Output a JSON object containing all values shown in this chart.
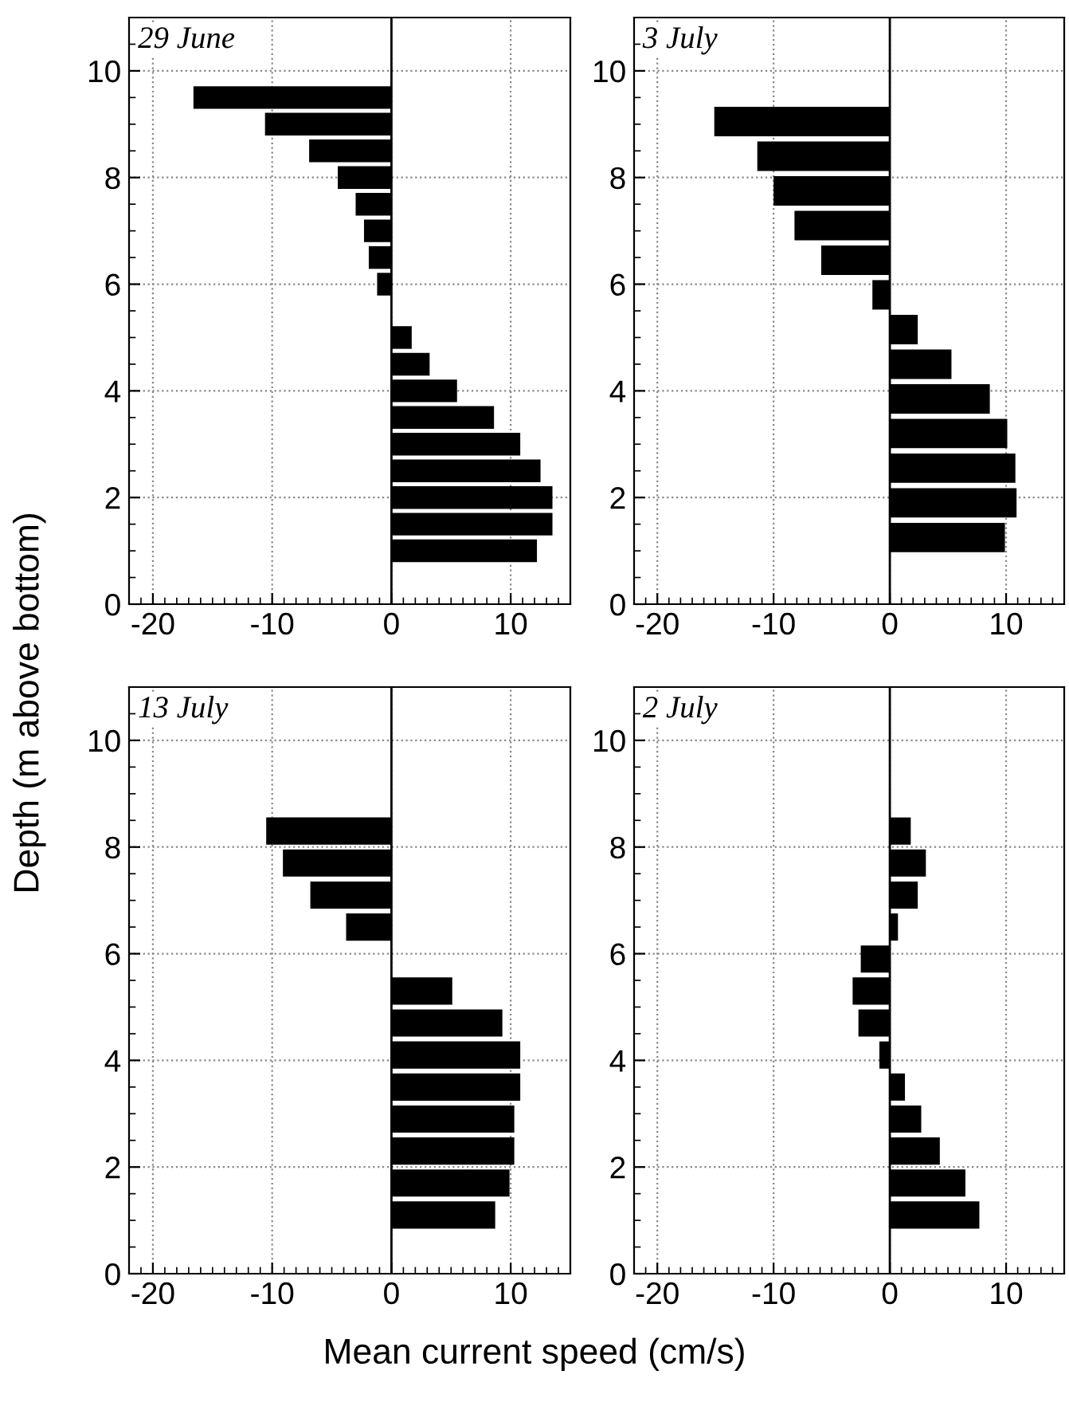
{
  "chart_data": [
    {
      "type": "bar",
      "orientation": "horizontal",
      "title": "29 June",
      "ylabel": "Depth (m above bottom)",
      "xlabel": "Mean current speed (cm/s)",
      "x": [
        9.5,
        9.0,
        8.5,
        8.0,
        7.5,
        7.0,
        6.5,
        6.0,
        5.0,
        4.5,
        4.0,
        3.5,
        3.0,
        2.5,
        2.0,
        1.5,
        1.0
      ],
      "values": [
        -16.6,
        -10.6,
        -6.9,
        -4.5,
        -3.0,
        -2.3,
        -1.9,
        -1.2,
        1.7,
        3.2,
        5.5,
        8.6,
        10.8,
        12.5,
        13.5,
        13.5,
        12.2
      ],
      "color": "#000000",
      "xlim": [
        -22,
        15
      ],
      "xticks": [
        -20,
        -10,
        0,
        10
      ],
      "ylim": [
        0,
        11
      ],
      "yticks": [
        0,
        2,
        4,
        6,
        8,
        10
      ],
      "grid": true,
      "ref_lines": [
        {
          "axis": "x",
          "value": 0
        }
      ]
    },
    {
      "type": "bar",
      "orientation": "horizontal",
      "title": "3 July",
      "x": [
        9.05,
        8.4,
        7.75,
        7.1,
        6.45,
        5.8,
        5.15,
        4.5,
        3.85,
        3.2,
        2.55,
        1.9,
        1.25
      ],
      "values": [
        -15.1,
        -11.4,
        -10.0,
        -8.2,
        -5.9,
        -1.5,
        2.4,
        5.3,
        8.6,
        10.1,
        10.8,
        10.9,
        9.9
      ],
      "color": "#000000",
      "xlim": [
        -22,
        15
      ],
      "xticks": [
        -20,
        -10,
        0,
        10
      ],
      "ylim": [
        0,
        11
      ],
      "yticks": [
        0,
        2,
        4,
        6,
        8,
        10
      ],
      "grid": true,
      "ref_lines": [
        {
          "axis": "x",
          "value": 0
        }
      ]
    },
    {
      "type": "bar",
      "orientation": "horizontal",
      "title": "13 July",
      "x": [
        8.3,
        7.7,
        7.1,
        6.5,
        5.3,
        4.7,
        4.1,
        3.5,
        2.9,
        2.3,
        1.7,
        1.1
      ],
      "values": [
        -10.5,
        -9.1,
        -6.8,
        -3.8,
        5.1,
        9.3,
        10.8,
        10.8,
        10.3,
        10.3,
        9.9,
        8.7
      ],
      "color": "#000000",
      "xlim": [
        -22,
        15
      ],
      "xticks": [
        -20,
        -10,
        0,
        10
      ],
      "ylim": [
        0,
        11
      ],
      "yticks": [
        0,
        2,
        4,
        6,
        8,
        10
      ],
      "grid": true,
      "ref_lines": [
        {
          "axis": "x",
          "value": 0
        }
      ]
    },
    {
      "type": "bar",
      "orientation": "horizontal",
      "title": "2 July",
      "x": [
        8.3,
        7.7,
        7.1,
        6.5,
        5.9,
        5.3,
        4.7,
        4.1,
        3.5,
        2.9,
        2.3,
        1.7,
        1.1
      ],
      "values": [
        1.8,
        3.1,
        2.4,
        0.7,
        -2.5,
        -3.2,
        -2.7,
        -0.9,
        1.3,
        2.7,
        4.3,
        6.5,
        7.7
      ],
      "color": "#000000",
      "xlim": [
        -22,
        15
      ],
      "xticks": [
        -20,
        -10,
        0,
        10
      ],
      "ylim": [
        0,
        11
      ],
      "yticks": [
        0,
        2,
        4,
        6,
        8,
        10
      ],
      "grid": true,
      "ref_lines": [
        {
          "axis": "x",
          "value": 0
        }
      ]
    }
  ]
}
